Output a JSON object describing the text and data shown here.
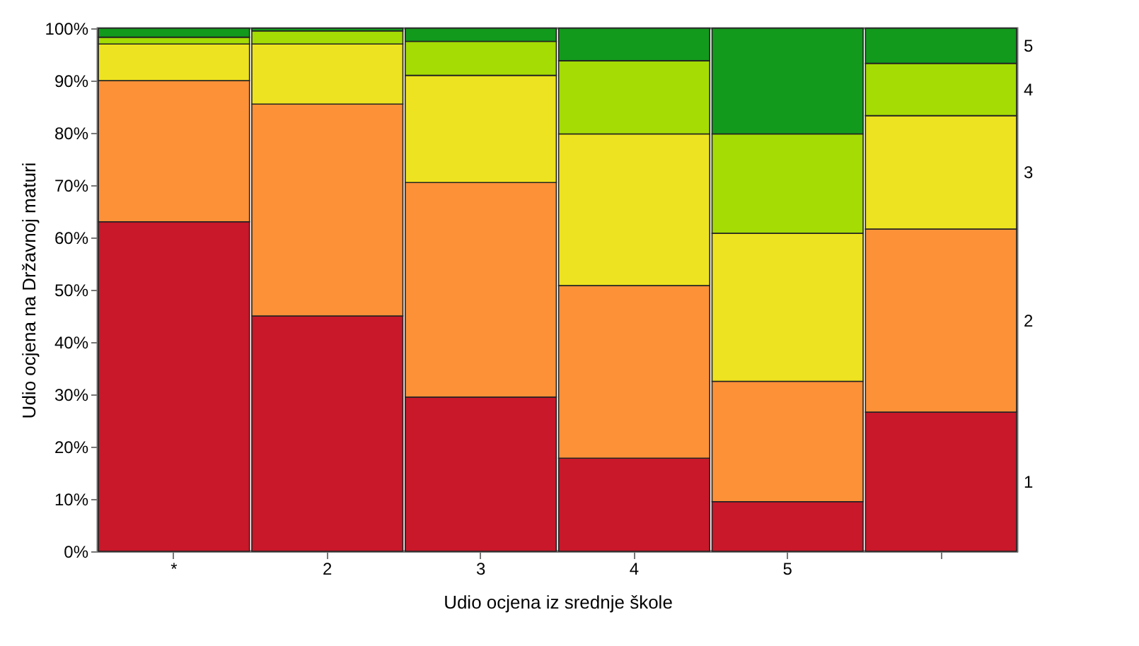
{
  "chart_data": {
    "type": "bar",
    "stacked": true,
    "xlabel": "Udio ocjena iz srednje škole",
    "ylabel": "Udio ocjena na Državnoj maturi",
    "categories": [
      "*",
      "2",
      "3",
      "4",
      "5",
      null
    ],
    "ylim": [
      0,
      100
    ],
    "yticks": [
      {
        "value": 0,
        "label": "0%"
      },
      {
        "value": 10,
        "label": "10%"
      },
      {
        "value": 20,
        "label": "20%"
      },
      {
        "value": 30,
        "label": "30%"
      },
      {
        "value": 40,
        "label": "40%"
      },
      {
        "value": 50,
        "label": "50%"
      },
      {
        "value": 60,
        "label": "60%"
      },
      {
        "value": 70,
        "label": "70%"
      },
      {
        "value": 80,
        "label": "80%"
      },
      {
        "value": 90,
        "label": "90%"
      },
      {
        "value": 100,
        "label": "100%"
      }
    ],
    "legend": false,
    "grid": false,
    "series": [
      {
        "name": "1",
        "color": "#c8182a",
        "values": [
          63,
          45,
          29.5,
          17.8,
          9.5,
          26.6
        ]
      },
      {
        "name": "2",
        "color": "#fd9138",
        "values": [
          27,
          40.5,
          41,
          33,
          23,
          35
        ]
      },
      {
        "name": "3",
        "color": "#eee320",
        "values": [
          7,
          11.5,
          20.5,
          29,
          28.3,
          21.7
        ]
      },
      {
        "name": "4",
        "color": "#a5dc04",
        "values": [
          1.3,
          2.5,
          6.5,
          14,
          19,
          10
        ]
      },
      {
        "name": "5",
        "color": "#129a1d",
        "values": [
          1.7,
          0.5,
          2.5,
          6.2,
          20.2,
          6.7
        ]
      }
    ]
  }
}
